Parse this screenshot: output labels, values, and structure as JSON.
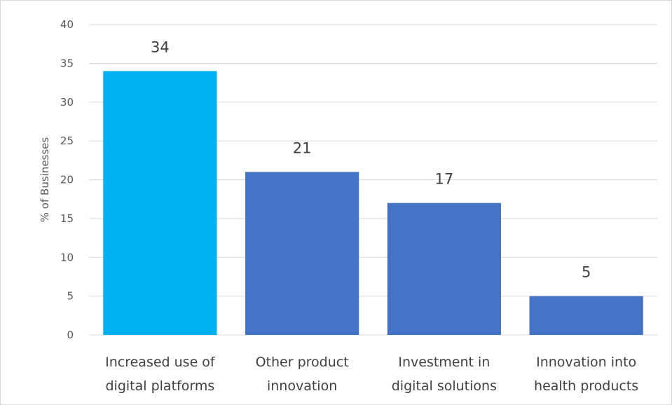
{
  "chart_data": {
    "type": "bar",
    "ylabel": "% of Businesses",
    "categories": [
      [
        "Increased use of",
        "digital platforms"
      ],
      [
        "Other product",
        "innovation"
      ],
      [
        "Investment in",
        "digital solutions"
      ],
      [
        "Innovation into",
        "health products"
      ]
    ],
    "values": [
      34,
      21,
      17,
      5
    ],
    "data_labels": [
      "34",
      "21",
      "17",
      "5"
    ],
    "yticks": [
      "0",
      "5",
      "10",
      "15",
      "20",
      "25",
      "30",
      "35",
      "40"
    ],
    "ylim": [
      0,
      40
    ],
    "grid": true,
    "legend": "none"
  },
  "colors": {
    "highlight_bar": "#00b0f0",
    "bar": "#4472c4",
    "gridline": "#d9d9d9",
    "axis_text": "#595959",
    "label_text": "#404040"
  }
}
